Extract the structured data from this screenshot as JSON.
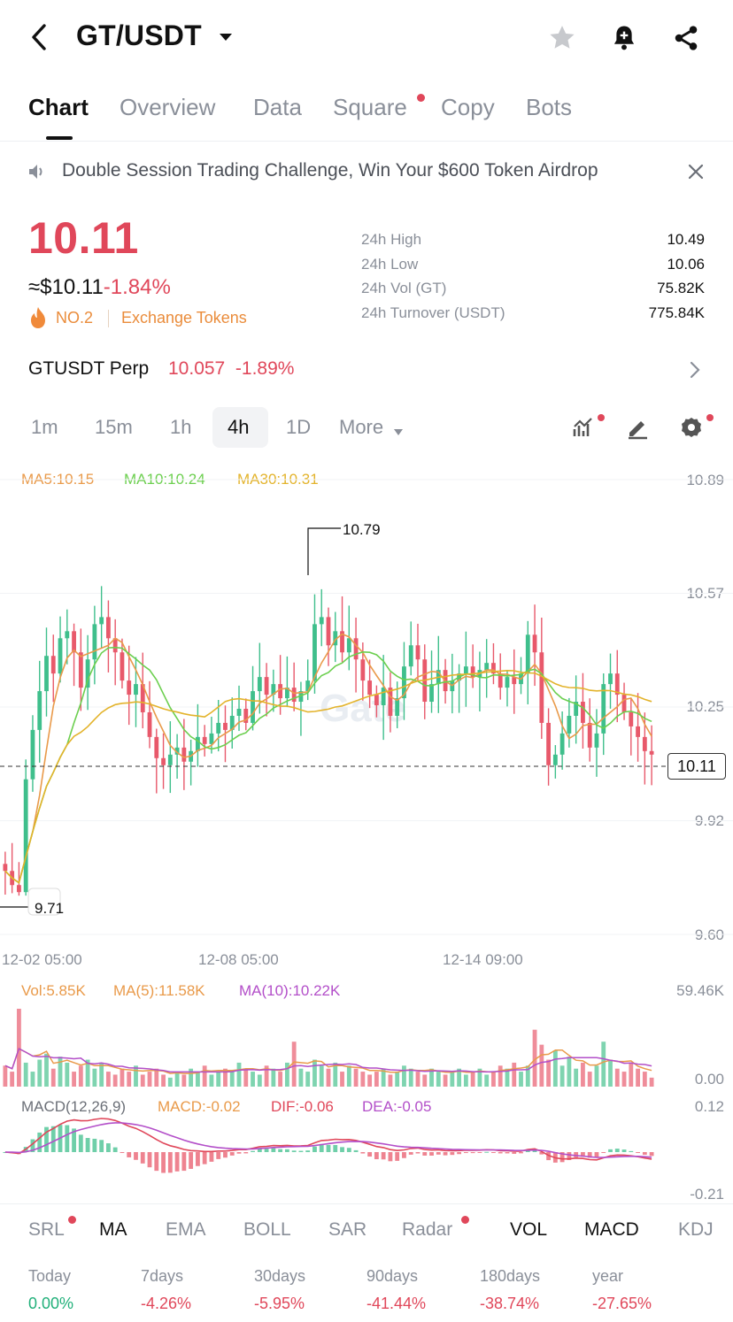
{
  "header": {
    "pair": "GT/USDT",
    "icons": [
      "back-icon",
      "chevron-down-icon",
      "star-icon",
      "bell-plus-icon",
      "share-icon"
    ]
  },
  "tabs": [
    {
      "label": "Chart",
      "active": true
    },
    {
      "label": "Overview"
    },
    {
      "label": "Data"
    },
    {
      "label": "Square",
      "badge": true
    },
    {
      "label": "Copy"
    },
    {
      "label": "Bots"
    }
  ],
  "banner": {
    "text": "Double Session Trading Challenge, Win Your $600 Token Airdrop"
  },
  "price": {
    "last": "10.11",
    "usd": "≈$10.11",
    "change": "-1.84%",
    "rank": "NO.2",
    "category": "Exchange Tokens"
  },
  "stats": [
    {
      "label": "24h High",
      "value": "10.49"
    },
    {
      "label": "24h Low",
      "value": "10.06"
    },
    {
      "label": "24h Vol (GT)",
      "value": "75.82K"
    },
    {
      "label": "24h Turnover (USDT)",
      "value": "775.84K"
    }
  ],
  "perp": {
    "name": "GTUSDT Perp",
    "price": "10.057",
    "change": "-1.89%"
  },
  "intervals": [
    "1m",
    "15m",
    "1h",
    "4h",
    "1D",
    "More"
  ],
  "active_interval": "4h",
  "colors": {
    "up": "#3fbf8c",
    "down": "#e8596b",
    "ma5": "#e99a4a",
    "ma10": "#6ccf4f",
    "ma30": "#e3b32b",
    "accent": "#e0475a"
  },
  "chart_data": {
    "type": "candlestick",
    "ma_legend": {
      "ma5": "MA5:10.15",
      "ma10": "MA10:10.24",
      "ma30": "MA30:10.31"
    },
    "y_ticks": [
      "10.89",
      "10.57",
      "10.25",
      "9.92",
      "9.60"
    ],
    "ylim": [
      9.6,
      10.89
    ],
    "x_ticks": [
      "12-02 05:00",
      "12-08 05:00",
      "12-14 09:00"
    ],
    "high_marker": "10.79",
    "low_marker": "9.71",
    "last_price": "10.11",
    "closes": [
      9.78,
      9.74,
      9.72,
      10.04,
      10.18,
      10.29,
      10.39,
      10.34,
      10.44,
      10.46,
      10.4,
      10.3,
      10.38,
      10.48,
      10.5,
      10.44,
      10.4,
      10.32,
      10.28,
      10.31,
      10.23,
      10.16,
      10.1,
      10.08,
      10.11,
      10.13,
      10.09,
      10.12,
      10.16,
      10.14,
      10.17,
      10.2,
      10.18,
      10.22,
      10.24,
      10.2,
      10.29,
      10.33,
      10.28,
      10.31,
      10.27,
      10.3,
      10.26,
      10.29,
      10.32,
      10.48,
      10.5,
      10.42,
      10.46,
      10.4,
      10.44,
      10.38,
      10.32,
      10.28,
      10.25,
      10.3,
      10.22,
      10.27,
      10.36,
      10.42,
      10.38,
      10.26,
      10.31,
      10.35,
      10.29,
      10.32,
      10.34,
      10.36,
      10.33,
      10.35,
      10.37,
      10.34,
      10.3,
      10.33,
      10.31,
      10.34,
      10.45,
      10.4,
      10.2,
      10.08,
      10.11,
      10.17,
      10.22,
      10.26,
      10.2,
      10.13,
      10.17,
      10.31,
      10.34,
      10.28,
      10.23,
      10.19,
      10.16,
      10.12,
      10.11
    ],
    "volume": {
      "legend": {
        "vol": "Vol:5.85K",
        "ma5": "MA(5):11.58K",
        "ma10": "MA(10):10.22K"
      },
      "y_ticks": [
        "59.46K",
        "0.00"
      ],
      "values": [
        14,
        10,
        52,
        16,
        10,
        18,
        22,
        12,
        20,
        16,
        10,
        14,
        18,
        12,
        16,
        10,
        8,
        12,
        10,
        14,
        8,
        10,
        12,
        8,
        6,
        10,
        8,
        12,
        10,
        14,
        8,
        10,
        12,
        10,
        16,
        12,
        10,
        8,
        14,
        12,
        10,
        16,
        30,
        12,
        10,
        18,
        14,
        12,
        16,
        10,
        14,
        12,
        10,
        8,
        10,
        12,
        8,
        10,
        14,
        12,
        10,
        8,
        12,
        10,
        8,
        10,
        12,
        8,
        10,
        12,
        8,
        10,
        14,
        12,
        16,
        10,
        14,
        38,
        28,
        18,
        24,
        14,
        20,
        12,
        16,
        10,
        14,
        30,
        18,
        12,
        10,
        16,
        12,
        10,
        6
      ]
    },
    "macd": {
      "legend": {
        "name": "MACD(12,26,9)",
        "macd": "MACD:-0.02",
        "dif": "DIF:-0.06",
        "dea": "DEA:-0.05"
      },
      "y_ticks": [
        "0.12",
        "-0.21"
      ]
    }
  },
  "indicators": [
    {
      "label": "SRL",
      "badge": true
    },
    {
      "label": "MA",
      "active": true
    },
    {
      "label": "EMA"
    },
    {
      "label": "BOLL"
    },
    {
      "label": "SAR"
    },
    {
      "label": "Radar",
      "badge": true
    },
    {
      "label": "VOL",
      "active": true
    },
    {
      "label": "MACD",
      "active": true
    },
    {
      "label": "KDJ"
    }
  ],
  "periods": [
    {
      "label": "Today",
      "value": "0.00%",
      "positive": true
    },
    {
      "label": "7days",
      "value": "-4.26%"
    },
    {
      "label": "30days",
      "value": "-5.95%"
    },
    {
      "label": "90days",
      "value": "-41.44%"
    },
    {
      "label": "180days",
      "value": "-38.74%"
    },
    {
      "label": "year",
      "value": "-27.65%"
    }
  ]
}
